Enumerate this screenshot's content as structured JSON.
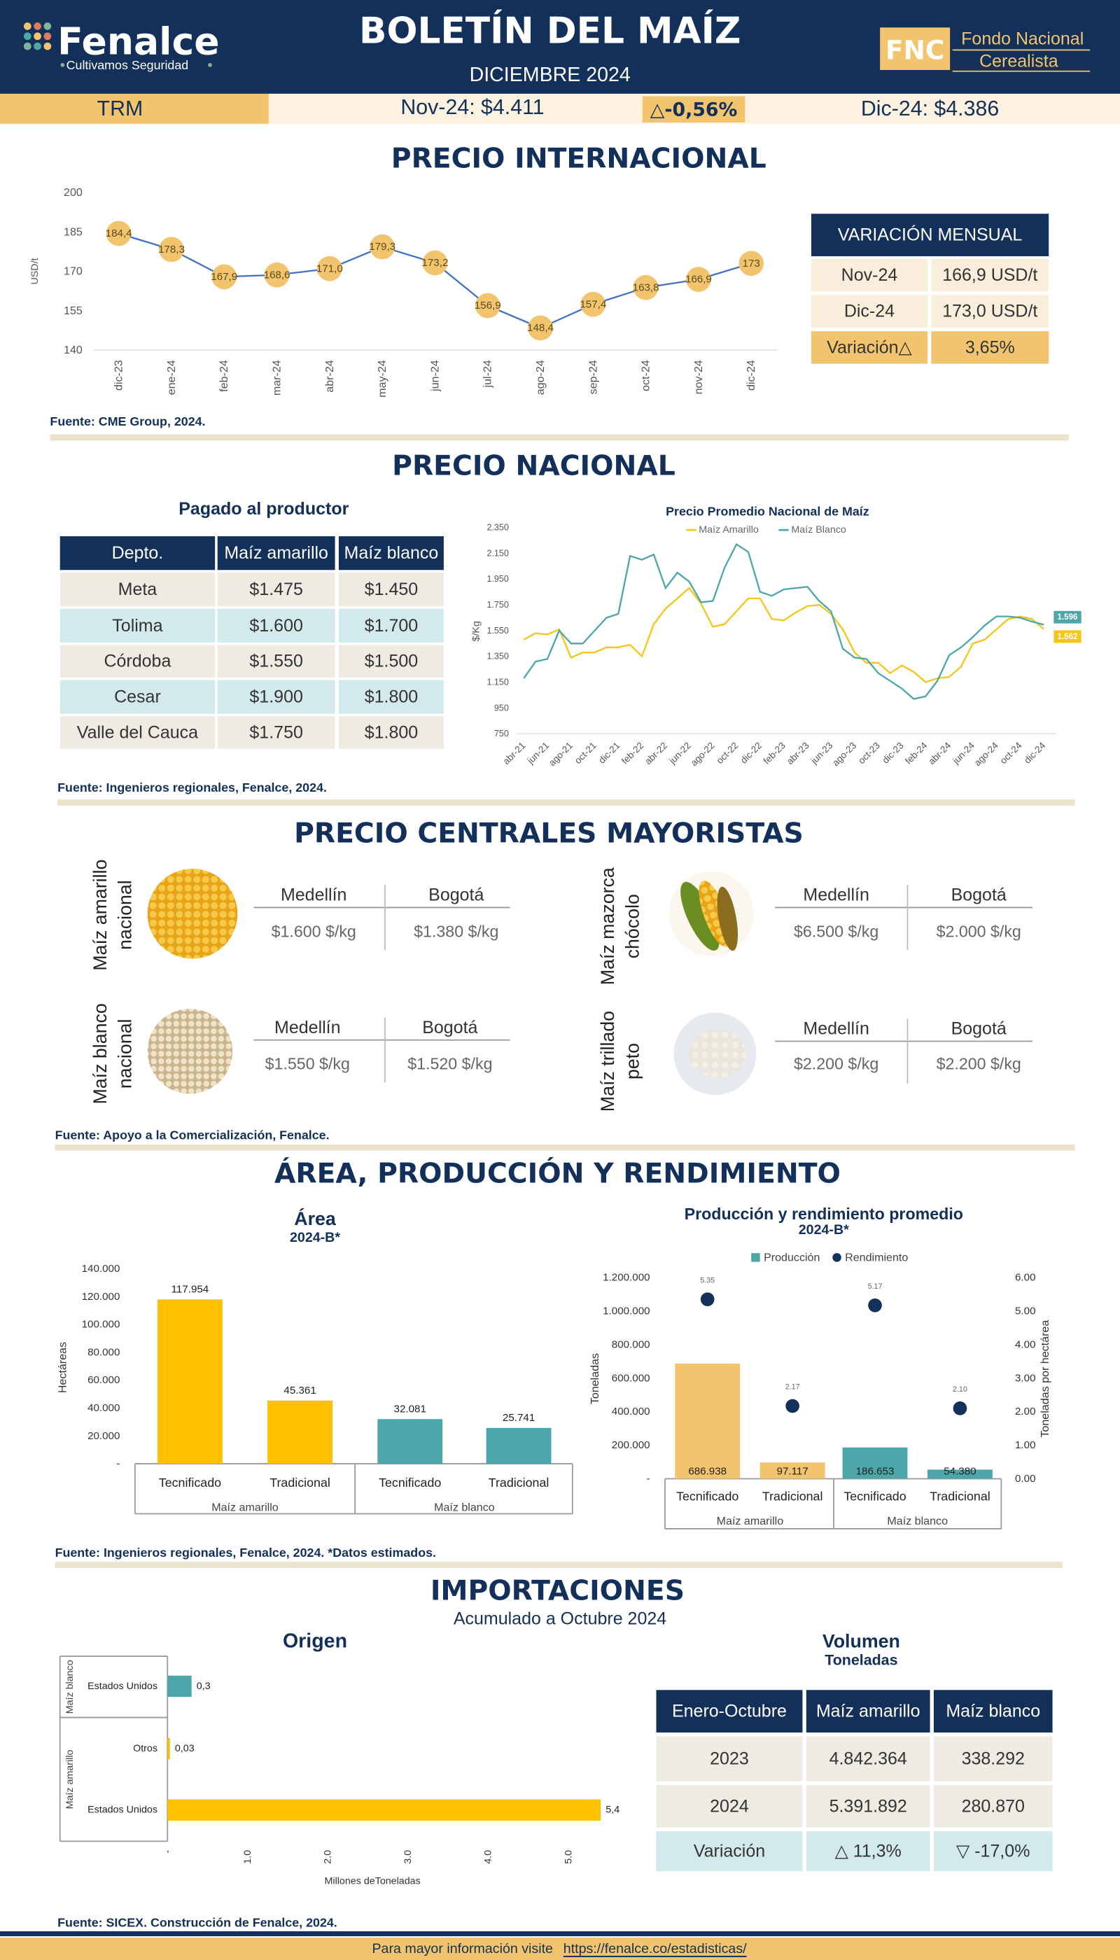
{
  "header": {
    "logo": "Fenalce",
    "tagline": "Cultivamos Seguridad",
    "title": "BOLETÍN DEL MAÍZ",
    "subtitle": "DICIEMBRE 2024",
    "fnc": "FNC",
    "fnc_name": [
      "Fondo Nacional",
      "Cerealista"
    ]
  },
  "trm": {
    "label": "TRM",
    "previous": "Nov-24: $4.411",
    "change": "△-0,56%",
    "current": "Dic-24: $4.386"
  },
  "sections": [
    "PRECIO INTERNACIONAL",
    "PRECIO NACIONAL",
    "PRECIO CENTRALES MAYORISTAS",
    "ÁREA, PRODUCCIÓN Y RENDIMIENTO",
    "IMPORTACIONES"
  ],
  "sources": [
    "Fuente: CME Group, 2024.",
    "Fuente: Ingenieros regionales, Fenalce, 2024.",
    "Fuente: Apoyo a la Comercialización, Fenalce.",
    "Fuente: Ingenieros regionales, Fenalce, 2024. *Datos estimados.",
    "Fuente: SICEX. Construcción de Fenalce, 2024."
  ],
  "variacion_mensual": {
    "title": "VARIACIÓN MENSUAL",
    "rows": [
      [
        "Nov-24",
        "166,9 USD/t"
      ],
      [
        "Dic-24",
        "173,0 USD/t"
      ],
      [
        "Variación△",
        "3,65%"
      ]
    ]
  },
  "pagado_productor": {
    "title": "Pagado al productor",
    "header": [
      "Depto.",
      "Maíz amarillo",
      "Maíz blanco"
    ],
    "rows": [
      [
        "Meta",
        "$1.475",
        "$1.450"
      ],
      [
        "Tolima",
        "$1.600",
        "$1.700"
      ],
      [
        "Córdoba",
        "$1.550",
        "$1.500"
      ],
      [
        "Cesar",
        "$1.900",
        "$1.800"
      ],
      [
        "Valle del Cauca",
        "$1.750",
        "$1.800"
      ]
    ]
  },
  "mayoristas": {
    "cities": [
      "Medellín",
      "Bogotá"
    ],
    "products": [
      {
        "name": [
          "Maíz amarillo",
          "nacional"
        ],
        "prices": [
          "$1.600 $/kg",
          "$1.380 $/kg"
        ]
      },
      {
        "name": [
          "Maíz mazorca",
          "chócolo"
        ],
        "prices": [
          "$6.500 $/kg",
          "$2.000 $/kg"
        ]
      },
      {
        "name": [
          "Maíz blanco",
          "nacional"
        ],
        "prices": [
          "$1.550 $/kg",
          "$1.520 $/kg"
        ]
      },
      {
        "name": [
          "Maíz trillado",
          "peto"
        ],
        "prices": [
          "$2.200 $/kg",
          "$2.200 $/kg"
        ]
      }
    ]
  },
  "importaciones_subtitle": "Acumulado a Octubre 2024",
  "volumen": {
    "title": "Volumen",
    "subtitle": "Toneladas",
    "header": [
      "Enero-Octubre",
      "Maíz amarillo",
      "Maíz blanco"
    ],
    "rows": [
      [
        "2023",
        "4.842.364",
        "338.292"
      ],
      [
        "2024",
        "5.391.892",
        "280.870"
      ],
      [
        "Variación",
        "△ 11,3%",
        "▽ -17,0%"
      ]
    ]
  },
  "footer": {
    "text": "Para mayor información visite",
    "link": "https://fenalce.co/estadisticas/"
  },
  "chart_data": [
    {
      "type": "line",
      "y_label": "USD/t",
      "categories": [
        "dic-23",
        "ene-24",
        "feb-24",
        "mar-24",
        "abr-24",
        "may-24",
        "jun-24",
        "jul-24",
        "ago-24",
        "sep-24",
        "oct-24",
        "nov-24",
        "dic-24"
      ],
      "values": [
        184.4,
        178.3,
        167.9,
        168.6,
        171.0,
        179.3,
        173.2,
        156.9,
        148.4,
        157.4,
        163.8,
        166.9,
        173
      ],
      "value_labels": [
        "184,4",
        "178,3",
        "167,9",
        "168,6",
        "171,0",
        "179,3",
        "173,2",
        "156,9",
        "148,4",
        "157,4",
        "163,8",
        "166,9",
        "173"
      ],
      "color": "#4472c4",
      "marker_color": "#f2c46d",
      "ylim": [
        140,
        200
      ],
      "yticks": [
        140,
        155,
        170,
        185,
        200
      ]
    },
    {
      "type": "line",
      "title": "Precio Promedio Nacional de Maíz",
      "y_label": "$/Kg",
      "categories": [
        "abr-21",
        null,
        "jun-21",
        null,
        "ago-21",
        null,
        "oct-21",
        null,
        "dic-21",
        null,
        "feb-22",
        null,
        "abr-22",
        null,
        "jun-22",
        null,
        "ago-22",
        null,
        "oct-22",
        null,
        "dic-22",
        null,
        "feb-23",
        null,
        "abr-23",
        null,
        "jun-23",
        null,
        "ago-23",
        null,
        "oct-23",
        null,
        "dic-23",
        null,
        "feb-24",
        null,
        "abr-24",
        null,
        "jun-24",
        null,
        "ago-24",
        null,
        "oct-24",
        null,
        "dic-24"
      ],
      "series": [
        {
          "name": "Maíz Amarillo",
          "color": "#f5c518",
          "values": [
            1480,
            1530,
            1520,
            1560,
            1340,
            1380,
            1380,
            1420,
            1420,
            1440,
            1350,
            1600,
            1720,
            1800,
            1880,
            1760,
            1580,
            1600,
            1700,
            1800,
            1800,
            1640,
            1630,
            1690,
            1740,
            1750,
            1680,
            1560,
            1380,
            1300,
            1300,
            1220,
            1280,
            1230,
            1150,
            1180,
            1190,
            1270,
            1450,
            1480,
            1560,
            1640,
            1660,
            1640,
            1562
          ],
          "value_labels": [
            null,
            null,
            null,
            null,
            null,
            null,
            null,
            null,
            null,
            null,
            null,
            null,
            null,
            null,
            null,
            null,
            null,
            null,
            null,
            null,
            null,
            null,
            null,
            null,
            null,
            null,
            null,
            null,
            null,
            null,
            null,
            null,
            null,
            null,
            null,
            null,
            null,
            null,
            null,
            null,
            null,
            null,
            null,
            null,
            "1.562"
          ]
        },
        {
          "name": "Maíz Blanco",
          "color": "#4da6a9",
          "values": [
            1180,
            1310,
            1330,
            1550,
            1450,
            1450,
            1550,
            1650,
            1680,
            2130,
            2100,
            2140,
            1880,
            2000,
            1930,
            1770,
            1780,
            2040,
            2220,
            2160,
            1850,
            1820,
            1870,
            1880,
            1890,
            1780,
            1700,
            1410,
            1340,
            1330,
            1220,
            1160,
            1100,
            1020,
            1040,
            1160,
            1360,
            1420,
            1500,
            1590,
            1660,
            1660,
            1650,
            1620,
            1596
          ],
          "value_labels": [
            null,
            null,
            null,
            null,
            null,
            null,
            null,
            null,
            null,
            null,
            null,
            null,
            null,
            null,
            null,
            null,
            null,
            null,
            null,
            null,
            null,
            null,
            null,
            null,
            null,
            null,
            null,
            null,
            null,
            null,
            null,
            null,
            null,
            null,
            null,
            null,
            null,
            null,
            null,
            null,
            null,
            null,
            null,
            null,
            "1.596"
          ]
        }
      ],
      "ylim": [
        750,
        2350
      ],
      "yticks": [
        750,
        950,
        {
          "value": 1150,
          "label": "1.150"
        },
        {
          "value": 1350,
          "label": "1.350"
        },
        {
          "value": 1550,
          "label": "1.550"
        },
        {
          "value": 1750,
          "label": "1.750"
        },
        {
          "value": 1950,
          "label": "1.950"
        },
        {
          "value": 2150,
          "label": "2.150"
        },
        {
          "value": 2350,
          "label": "2.350"
        }
      ]
    },
    {
      "type": "bar",
      "title": "Área",
      "subtitle": "2024-B*",
      "y_label": "Hectáreas",
      "groups": [
        {
          "name": "Maíz amarillo",
          "categories": [
            "Tecnificado",
            "Tradicional"
          ]
        },
        {
          "name": "Maíz blanco",
          "categories": [
            "Tecnificado",
            "Tradicional"
          ]
        }
      ],
      "values": [
        117954,
        45361,
        32081,
        25741
      ],
      "value_labels": [
        "117.954",
        "45.361",
        "32.081",
        "25.741"
      ],
      "colors": [
        "#ffc000",
        "#ffc000",
        "#4da6a9",
        "#4da6a9"
      ],
      "ylim": [
        0,
        140000
      ],
      "yticks": [
        {
          "value": 0,
          "label": "-"
        },
        {
          "value": 20000,
          "label": "20.000"
        },
        {
          "value": 40000,
          "label": "40.000"
        },
        {
          "value": 60000,
          "label": "60.000"
        },
        {
          "value": 80000,
          "label": "80.000"
        },
        {
          "value": 100000,
          "label": "100.000"
        },
        {
          "value": 120000,
          "label": "120.000"
        },
        {
          "value": 140000,
          "label": "140.000"
        }
      ]
    },
    {
      "type": "combo",
      "title": "Producción y rendimiento promedio",
      "subtitle": "2024-B*",
      "y_label": "Toneladas",
      "y2_label": "Toneladas por hectárea",
      "groups": [
        {
          "name": "Maíz amarillo",
          "categories": [
            "Tecnificado",
            "Tradicional"
          ]
        },
        {
          "name": "Maíz blanco",
          "categories": [
            "Tecnificado",
            "Tradicional"
          ]
        }
      ],
      "series": [
        {
          "name": "Producción",
          "type": "bar",
          "color": "#4da6a9",
          "colors": [
            "#f2c46d",
            "#f2c46d",
            "#4da6a9",
            "#4da6a9"
          ],
          "values": [
            686938,
            97117,
            186653,
            54380
          ],
          "value_labels": [
            "686.938",
            "97.117",
            "186.653",
            "54.380"
          ]
        },
        {
          "name": "Rendimiento",
          "type": "scatter",
          "axis": "y2",
          "color": "#13305a",
          "values": [
            5.35,
            2.17,
            5.17,
            2.1
          ],
          "value_labels": [
            "5.35",
            "2.17",
            "5.17",
            "2.10"
          ]
        }
      ],
      "ylim": [
        0,
        1200000
      ],
      "yticks": [
        {
          "value": 0,
          "label": "-"
        },
        {
          "value": 200000,
          "label": "200.000"
        },
        {
          "value": 400000,
          "label": "400.000"
        },
        {
          "value": 600000,
          "label": "600.000"
        },
        {
          "value": 800000,
          "label": "800.000"
        },
        {
          "value": 1000000,
          "label": "1.000.000"
        },
        {
          "value": 1200000,
          "label": "1.200.000"
        }
      ],
      "y2lim": [
        0,
        6
      ],
      "y2ticks": [
        {
          "value": 0,
          "label": "0.00"
        },
        {
          "value": 1,
          "label": "1.00"
        },
        {
          "value": 2,
          "label": "2.00"
        },
        {
          "value": 3,
          "label": "3.00"
        },
        {
          "value": 4,
          "label": "4.00"
        },
        {
          "value": 5,
          "label": "5.00"
        },
        {
          "value": 6,
          "label": "6.00"
        }
      ]
    },
    {
      "type": "barh",
      "title": "Origen",
      "x_label": "Millones deToneladas",
      "groups": [
        {
          "name": "Maíz blanco",
          "categories": [
            "Estados Unidos"
          ]
        },
        {
          "name": "Maíz amarillo",
          "categories": [
            "Otros",
            "Estados Unidos"
          ]
        }
      ],
      "values": [
        0.3,
        0.03,
        5.4
      ],
      "value_labels": [
        "0,3",
        "0,03",
        "5,4"
      ],
      "colors": [
        "#4da6a9",
        "#ffc000",
        "#ffc000"
      ],
      "xlim": [
        0,
        5.5
      ],
      "xticks": [
        {
          "value": 0,
          "label": "-"
        },
        {
          "value": 1,
          "label": "1.0"
        },
        {
          "value": 2,
          "label": "2.0"
        },
        {
          "value": 3,
          "label": "3.0"
        },
        {
          "value": 4,
          "label": "4.0"
        },
        {
          "value": 5,
          "label": "5.0"
        }
      ]
    }
  ]
}
